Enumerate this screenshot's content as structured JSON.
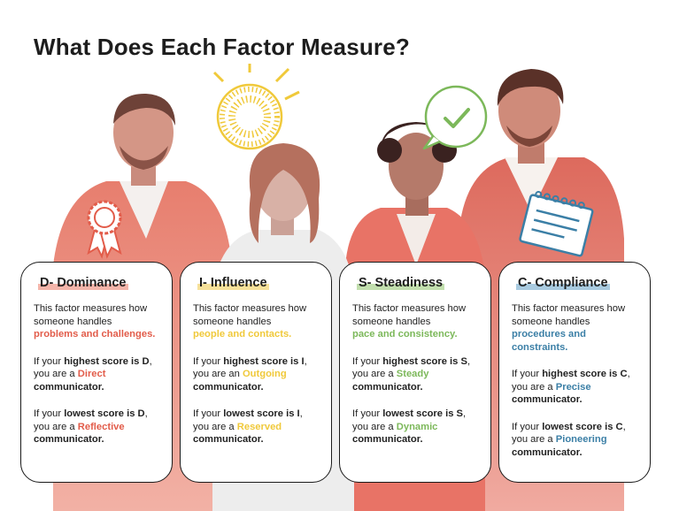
{
  "title": "What Does Each Factor Measure?",
  "colors": {
    "d": "#e25c4a",
    "i": "#f0c93a",
    "s": "#7cb85a",
    "c": "#3b7fa6",
    "d_under": "#f4b5aa",
    "i_under": "#f7e19a",
    "s_under": "#c2dfae",
    "c_under": "#a9cbe0"
  },
  "cards": [
    {
      "heading": "D- Dominance",
      "intro": "This factor measures how someone handles",
      "focus": "problems and challenges.",
      "highest_pre": "If your ",
      "highest_bold": "highest score is D",
      "highest_mid": ",",
      "highest_you": "you are a ",
      "highest_style": "Direct",
      "lowest_pre": "If your ",
      "lowest_bold": "lowest score is D",
      "lowest_mid": ",",
      "lowest_you": "you are a ",
      "lowest_style": "Reflective",
      "communicator": "communicator."
    },
    {
      "heading": "I- Influence",
      "intro": "This factor measures how someone handles",
      "focus": "people and contacts.",
      "highest_pre": "If your ",
      "highest_bold": "highest score is I",
      "highest_mid": ",",
      "highest_you": "you are an ",
      "highest_style": "Outgoing",
      "lowest_pre": "If your ",
      "lowest_bold": "lowest score is I",
      "lowest_mid": ",",
      "lowest_you": "you are a ",
      "lowest_style": "Reserved",
      "communicator": "communicator."
    },
    {
      "heading": "S- Steadiness",
      "intro": "This factor measures how someone handles",
      "focus": "pace and consistency.",
      "highest_pre": "If your ",
      "highest_bold": "highest score is S",
      "highest_mid": ",",
      "highest_you": "you are a ",
      "highest_style": "Steady",
      "lowest_pre": "If your ",
      "lowest_bold": "lowest score is S",
      "lowest_mid": ",",
      "lowest_you": "you are a ",
      "lowest_style": "Dynamic",
      "communicator": "communicator."
    },
    {
      "heading": "C- Compliance",
      "intro": "This factor measures how someone handles",
      "focus": "procedures and constraints.",
      "highest_pre": "If your ",
      "highest_bold": "highest score is C",
      "highest_mid": ",",
      "highest_you": "you are a ",
      "highest_style": "Precise",
      "lowest_pre": "If your ",
      "lowest_bold": "lowest score is C",
      "lowest_mid": ",",
      "lowest_you": "you are a ",
      "lowest_style": "Pioneering",
      "communicator": "communicator."
    }
  ],
  "icons": {
    "d": "award-ribbon-icon",
    "i": "lightbulb-sun-icon",
    "s": "check-speech-bubble-icon",
    "c": "notepad-icon"
  }
}
